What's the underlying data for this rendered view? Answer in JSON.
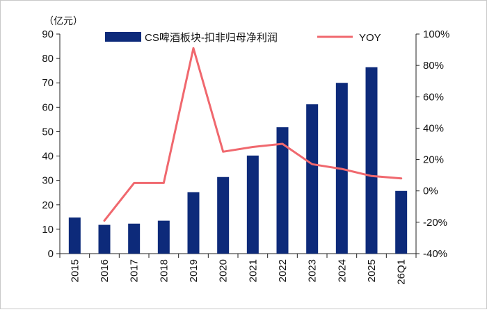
{
  "chart_data": {
    "type": "bar+line",
    "unit_label": "（亿元）",
    "categories": [
      "2015",
      "2016",
      "2017",
      "2018",
      "2019",
      "2020",
      "2021",
      "2022",
      "2023",
      "2024",
      "2025",
      "26Q1"
    ],
    "series": [
      {
        "name": "CS啤酒板块-扣非归母净利润",
        "type": "bar",
        "axis": "left",
        "color": "#0d2a7a",
        "values": [
          14.8,
          11.8,
          12.3,
          13.5,
          25.2,
          31.4,
          40.2,
          51.8,
          61.2,
          70.0,
          76.4,
          25.7
        ]
      },
      {
        "name": "YOY",
        "type": "line",
        "axis": "right",
        "color": "#f0686e",
        "values": [
          null,
          -19,
          5,
          5,
          91,
          25,
          28,
          30,
          17,
          14,
          9.5,
          8
        ]
      }
    ],
    "y_left": {
      "min": 0,
      "max": 90,
      "step": 10,
      "ticks": [
        "0",
        "10",
        "20",
        "30",
        "40",
        "50",
        "60",
        "70",
        "80",
        "90"
      ]
    },
    "y_right": {
      "min": -40,
      "max": 100,
      "step": 20,
      "ticks": [
        "-40%",
        "-20%",
        "0%",
        "20%",
        "40%",
        "60%",
        "80%",
        "100%"
      ]
    },
    "grid": false,
    "legend_position": "top"
  }
}
